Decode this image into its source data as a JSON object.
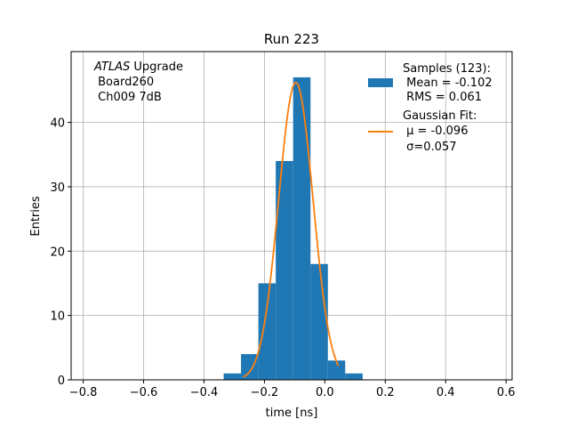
{
  "chart_data": {
    "type": "bar",
    "title": "Run 223",
    "xlabel": "time [ns]",
    "ylabel": "Entries",
    "xlim": [
      -0.84,
      0.62
    ],
    "ylim": [
      0,
      51
    ],
    "xticks": [
      -0.8,
      -0.6,
      -0.4,
      -0.2,
      0.0,
      0.2,
      0.4,
      0.6
    ],
    "xtick_labels": [
      "−0.8",
      "−0.6",
      "−0.4",
      "−0.2",
      "0.0",
      "0.2",
      "0.4",
      "0.6"
    ],
    "yticks": [
      0,
      10,
      20,
      30,
      40
    ],
    "ytick_labels": [
      "0",
      "10",
      "20",
      "30",
      "40"
    ],
    "grid": true,
    "annotation": {
      "line1_italic": "ATLAS",
      "line1_rest": " Upgrade",
      "line2": " Board260",
      "line3": " Ch009 7dB"
    },
    "histogram": {
      "bin_edges": [
        -0.335,
        -0.2775,
        -0.22,
        -0.1625,
        -0.105,
        -0.0475,
        0.01,
        0.0675,
        0.125
      ],
      "counts": [
        1,
        4,
        15,
        34,
        47,
        18,
        3,
        1
      ],
      "color": "#1f77b4"
    },
    "gaussian_fit": {
      "mu": -0.096,
      "sigma": 0.057,
      "amplitude": 46.2,
      "x_range": [
        -0.27,
        0.045
      ],
      "color": "#ff7f0e"
    },
    "legend": {
      "position": "top-right",
      "entries": [
        {
          "lines": [
            "Samples (123):",
            " Mean = -0.102",
            " RMS = 0.061"
          ]
        },
        {
          "lines": [
            "Gaussian Fit:",
            " μ = -0.096",
            " σ=0.057"
          ]
        }
      ]
    }
  }
}
